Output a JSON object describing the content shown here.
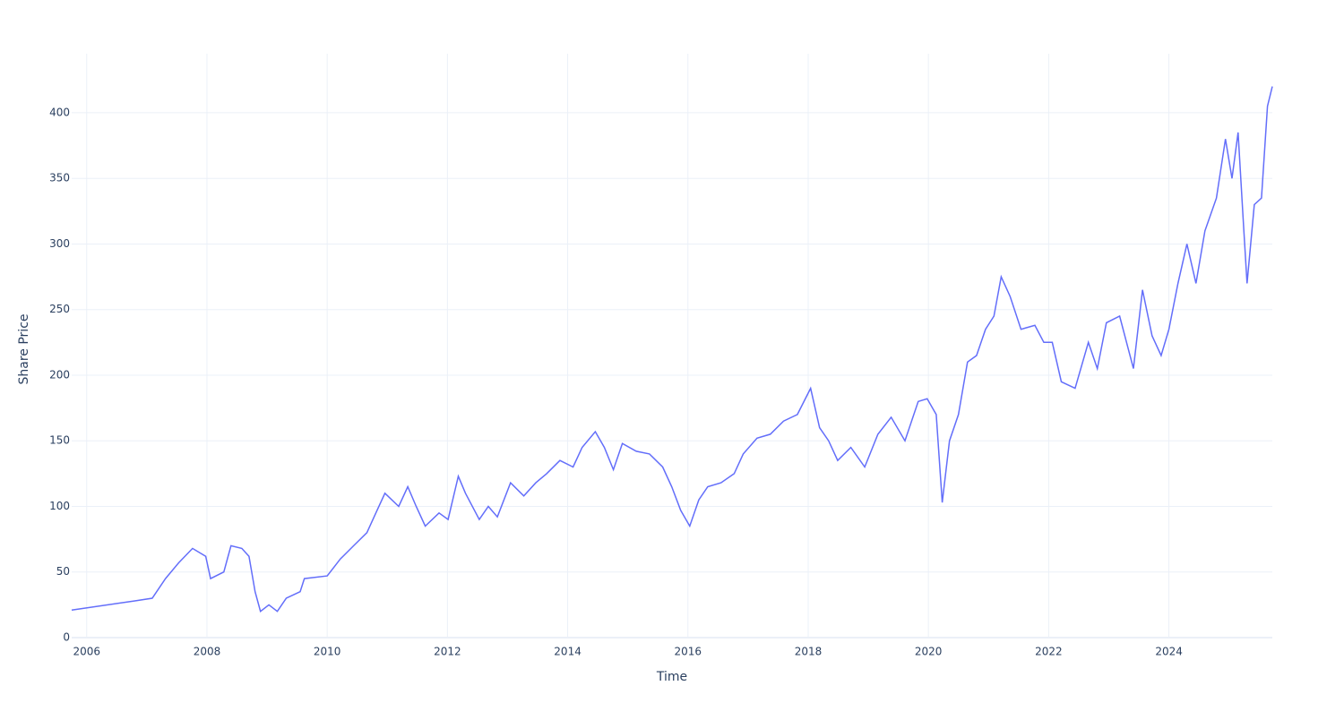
{
  "chart_data": {
    "type": "line",
    "x_label": "Time",
    "y_label": "Share Price",
    "xlim": [
      2005.75,
      2025.72
    ],
    "ylim": [
      0,
      445
    ],
    "xticks": [
      2006,
      2008,
      2010,
      2012,
      2014,
      2016,
      2018,
      2020,
      2022,
      2024
    ],
    "yticks": [
      0,
      50,
      100,
      150,
      200,
      250,
      300,
      350,
      400
    ],
    "grid": true,
    "series": [
      {
        "color": "#636efa",
        "x": [
          2005.75,
          2006.8,
          2007.09,
          2007.31,
          2007.53,
          2007.76,
          2007.98,
          2008.06,
          2008.28,
          2008.4,
          2008.58,
          2008.7,
          2008.8,
          2008.89,
          2009.03,
          2009.17,
          2009.32,
          2009.55,
          2009.62,
          2010.0,
          2010.22,
          2010.44,
          2010.66,
          2010.81,
          2010.96,
          2011.19,
          2011.34,
          2011.48,
          2011.63,
          2011.86,
          2012.01,
          2012.18,
          2012.3,
          2012.53,
          2012.68,
          2012.83,
          2013.05,
          2013.27,
          2013.47,
          2013.65,
          2013.87,
          2014.09,
          2014.24,
          2014.46,
          2014.61,
          2014.76,
          2014.91,
          2015.14,
          2015.36,
          2015.58,
          2015.73,
          2015.88,
          2016.03,
          2016.18,
          2016.33,
          2016.55,
          2016.77,
          2016.92,
          2017.15,
          2017.37,
          2017.59,
          2017.82,
          2018.04,
          2018.19,
          2018.34,
          2018.49,
          2018.71,
          2018.94,
          2019.16,
          2019.38,
          2019.61,
          2019.83,
          2019.98,
          2020.13,
          2020.23,
          2020.35,
          2020.5,
          2020.65,
          2020.8,
          2020.95,
          2021.09,
          2021.21,
          2021.36,
          2021.54,
          2021.77,
          2021.92,
          2022.06,
          2022.21,
          2022.44,
          2022.66,
          2022.81,
          2022.96,
          2023.18,
          2023.41,
          2023.56,
          2023.72,
          2023.87,
          2024.0,
          2024.15,
          2024.3,
          2024.45,
          2024.6,
          2024.79,
          2024.94,
          2025.05,
          2025.15,
          2025.24,
          2025.3,
          2025.42,
          2025.54,
          2025.64,
          2025.72
        ],
        "values": [
          21,
          28,
          30,
          45,
          57,
          68,
          62,
          45,
          50,
          70,
          68,
          62,
          35,
          20,
          25,
          20,
          30,
          35,
          45,
          47,
          60,
          70,
          80,
          95,
          110,
          100,
          115,
          100,
          85,
          95,
          90,
          123,
          110,
          90,
          100,
          92,
          118,
          108,
          118,
          125,
          135,
          130,
          145,
          157,
          145,
          128,
          148,
          142,
          140,
          130,
          115,
          97,
          85,
          105,
          115,
          118,
          125,
          140,
          152,
          155,
          165,
          170,
          190,
          160,
          150,
          135,
          145,
          130,
          155,
          168,
          150,
          180,
          182,
          170,
          103,
          150,
          170,
          210,
          215,
          235,
          245,
          275,
          260,
          235,
          238,
          225,
          225,
          195,
          190,
          225,
          205,
          240,
          245,
          205,
          265,
          230,
          215,
          235,
          270,
          300,
          270,
          310,
          335,
          380,
          350,
          385,
          315,
          270,
          330,
          335,
          405,
          420
        ]
      }
    ]
  }
}
